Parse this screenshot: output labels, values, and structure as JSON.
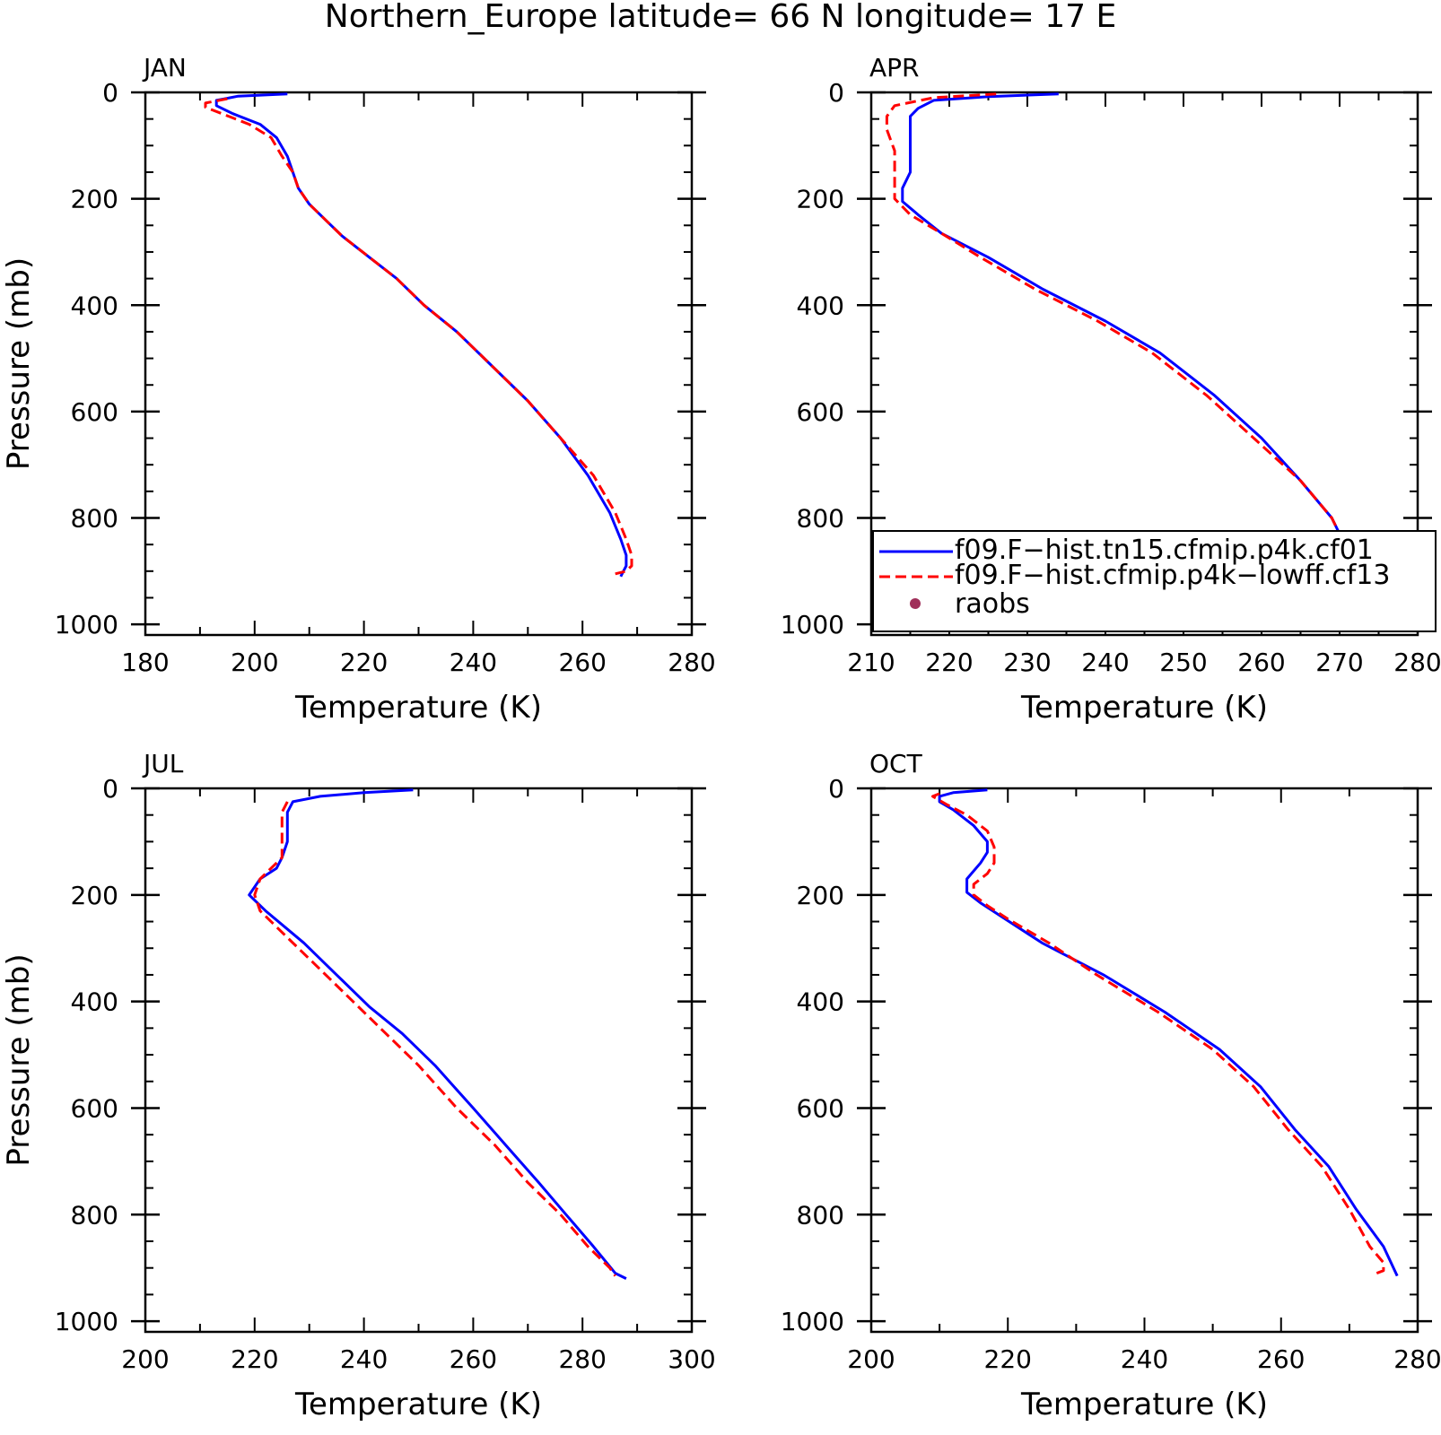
{
  "title": "Northern_Europe  latitude= 66 N longitude= 17 E",
  "colors": {
    "series1": "#0000ff",
    "series2": "#ff0000",
    "raobs": "#a0305a"
  },
  "legend": {
    "entries": [
      "f09.F−hist.tn15.cfmip.p4k.cf01",
      "f09.F−hist.cfmip.p4k−lowff.cf13",
      "raobs"
    ]
  },
  "chart_data": [
    {
      "type": "line",
      "panel_label": "JAN",
      "xlabel": "Temperature (K)",
      "ylabel": "Pressure (mb)",
      "xlim": [
        180,
        280
      ],
      "ylim": [
        1020,
        0
      ],
      "y_inverted": true,
      "xticks": [
        "180",
        "200",
        "220",
        "240",
        "260",
        "280"
      ],
      "yticks": [
        "0",
        "200",
        "400",
        "600",
        "800",
        "1000"
      ],
      "series": [
        {
          "name": "f09.F−hist.tn15.cfmip.p4k.cf01",
          "style": "solid",
          "points": [
            [
              206,
              3
            ],
            [
              197,
              7
            ],
            [
              193,
              15
            ],
            [
              193,
              25
            ],
            [
              196,
              40
            ],
            [
              201,
              60
            ],
            [
              204,
              85
            ],
            [
              206,
              120
            ],
            [
              207,
              150
            ],
            [
              208,
              180
            ],
            [
              210,
              210
            ],
            [
              213,
              240
            ],
            [
              216,
              270
            ],
            [
              221,
              310
            ],
            [
              226,
              350
            ],
            [
              231,
              400
            ],
            [
              237,
              450
            ],
            [
              243,
              510
            ],
            [
              250,
              580
            ],
            [
              256,
              650
            ],
            [
              261,
              720
            ],
            [
              265,
              790
            ],
            [
              267,
              840
            ],
            [
              268,
              870
            ],
            [
              268,
              890
            ],
            [
              267,
              910
            ]
          ]
        },
        {
          "name": "f09.F−hist.cfmip.p4k−lowff.cf13",
          "style": "dashed",
          "points": [
            [
              195,
              12
            ],
            [
              191,
              20
            ],
            [
              191,
              28
            ],
            [
              194,
              40
            ],
            [
              199,
              60
            ],
            [
              203,
              85
            ],
            [
              205,
              120
            ],
            [
              207,
              150
            ],
            [
              208,
              180
            ],
            [
              210,
              210
            ],
            [
              213,
              240
            ],
            [
              216,
              270
            ],
            [
              221,
              310
            ],
            [
              226,
              350
            ],
            [
              231,
              400
            ],
            [
              237,
              450
            ],
            [
              243,
              510
            ],
            [
              250,
              580
            ],
            [
              256,
              650
            ],
            [
              262,
              720
            ],
            [
              266,
              790
            ],
            [
              268,
              840
            ],
            [
              269,
              870
            ],
            [
              269,
              890
            ],
            [
              268,
              900
            ],
            [
              266,
              905
            ]
          ]
        }
      ]
    },
    {
      "type": "line",
      "panel_label": "APR",
      "xlabel": "Temperature (K)",
      "ylabel": "",
      "xlim": [
        210,
        280
      ],
      "ylim": [
        1020,
        0
      ],
      "y_inverted": true,
      "xticks": [
        "210",
        "220",
        "230",
        "240",
        "250",
        "260",
        "270",
        "280"
      ],
      "yticks": [
        "0",
        "200",
        "400",
        "600",
        "800",
        "1000"
      ],
      "series": [
        {
          "name": "f09.F−hist.tn15.cfmip.p4k.cf01",
          "style": "solid",
          "points": [
            [
              234,
              3
            ],
            [
              225,
              8
            ],
            [
              218,
              15
            ],
            [
              216,
              30
            ],
            [
              215,
              45
            ],
            [
              215,
              70
            ],
            [
              215,
              110
            ],
            [
              215,
              150
            ],
            [
              214,
              180
            ],
            [
              214,
              205
            ],
            [
              216,
              230
            ],
            [
              219,
              265
            ],
            [
              225,
              310
            ],
            [
              232,
              370
            ],
            [
              240,
              430
            ],
            [
              247,
              490
            ],
            [
              254,
              570
            ],
            [
              260,
              650
            ],
            [
              265,
              730
            ],
            [
              269,
              800
            ],
            [
              271,
              860
            ],
            [
              273,
              920
            ]
          ]
        },
        {
          "name": "f09.F−hist.cfmip.p4k−lowff.cf13",
          "style": "dashed",
          "points": [
            [
              226,
              3
            ],
            [
              218,
              10
            ],
            [
              213,
              25
            ],
            [
              212,
              45
            ],
            [
              212,
              70
            ],
            [
              213,
              110
            ],
            [
              213,
              150
            ],
            [
              213,
              180
            ],
            [
              213,
              200
            ],
            [
              215,
              230
            ],
            [
              219,
              265
            ],
            [
              224,
              310
            ],
            [
              231,
              370
            ],
            [
              239,
              430
            ],
            [
              246,
              490
            ],
            [
              253,
              570
            ],
            [
              259,
              650
            ],
            [
              265,
              730
            ],
            [
              269,
              800
            ],
            [
              271,
              860
            ],
            [
              272,
              880
            ]
          ]
        }
      ]
    },
    {
      "type": "line",
      "panel_label": "JUL",
      "xlabel": "Temperature (K)",
      "ylabel": "Pressure (mb)",
      "xlim": [
        200,
        300
      ],
      "ylim": [
        1020,
        0
      ],
      "y_inverted": true,
      "xticks": [
        "200",
        "220",
        "240",
        "260",
        "280",
        "300"
      ],
      "yticks": [
        "0",
        "200",
        "400",
        "600",
        "800",
        "1000"
      ],
      "series": [
        {
          "name": "f09.F−hist.tn15.cfmip.p4k.cf01",
          "style": "solid",
          "points": [
            [
              249,
              3
            ],
            [
              240,
              8
            ],
            [
              232,
              15
            ],
            [
              227,
              25
            ],
            [
              226,
              45
            ],
            [
              226,
              70
            ],
            [
              226,
              100
            ],
            [
              225,
              130
            ],
            [
              224,
              150
            ],
            [
              221,
              170
            ],
            [
              219,
              200
            ],
            [
              222,
              230
            ],
            [
              229,
              290
            ],
            [
              235,
              350
            ],
            [
              241,
              410
            ],
            [
              247,
              460
            ],
            [
              253,
              520
            ],
            [
              260,
              600
            ],
            [
              266,
              670
            ],
            [
              272,
              740
            ],
            [
              277,
              800
            ],
            [
              282,
              860
            ],
            [
              286,
              910
            ],
            [
              288,
              920
            ]
          ]
        },
        {
          "name": "f09.F−hist.cfmip.p4k−lowff.cf13",
          "style": "dashed",
          "points": [
            [
              226,
              25
            ],
            [
              225,
              45
            ],
            [
              225,
              70
            ],
            [
              225,
              100
            ],
            [
              225,
              130
            ],
            [
              223,
              150
            ],
            [
              221,
              170
            ],
            [
              220,
              200
            ],
            [
              221,
              230
            ],
            [
              227,
              290
            ],
            [
              233,
              350
            ],
            [
              239,
              410
            ],
            [
              244,
              460
            ],
            [
              250,
              520
            ],
            [
              257,
              600
            ],
            [
              264,
              670
            ],
            [
              270,
              740
            ],
            [
              276,
              800
            ],
            [
              281,
              860
            ],
            [
              285,
              900
            ],
            [
              286,
              915
            ]
          ]
        }
      ]
    },
    {
      "type": "line",
      "panel_label": "OCT",
      "xlabel": "Temperature (K)",
      "ylabel": "",
      "xlim": [
        200,
        280
      ],
      "ylim": [
        1020,
        0
      ],
      "y_inverted": true,
      "xticks": [
        "200",
        "220",
        "240",
        "260",
        "280"
      ],
      "yticks": [
        "0",
        "200",
        "400",
        "600",
        "800",
        "1000"
      ],
      "series": [
        {
          "name": "f09.F−hist.tn15.cfmip.p4k.cf01",
          "style": "solid",
          "points": [
            [
              217,
              3
            ],
            [
              212,
              8
            ],
            [
              210,
              15
            ],
            [
              210,
              25
            ],
            [
              212,
              40
            ],
            [
              215,
              70
            ],
            [
              217,
              100
            ],
            [
              217,
              120
            ],
            [
              216,
              140
            ],
            [
              214,
              170
            ],
            [
              214,
              195
            ],
            [
              216,
              215
            ],
            [
              219,
              240
            ],
            [
              225,
              290
            ],
            [
              234,
              350
            ],
            [
              243,
              420
            ],
            [
              251,
              490
            ],
            [
              257,
              560
            ],
            [
              262,
              640
            ],
            [
              267,
              710
            ],
            [
              271,
              790
            ],
            [
              275,
              860
            ],
            [
              277,
              915
            ]
          ]
        },
        {
          "name": "f09.F−hist.cfmip.p4k−lowff.cf13",
          "style": "dashed",
          "points": [
            [
              210,
              10
            ],
            [
              209,
              15
            ],
            [
              211,
              30
            ],
            [
              214,
              50
            ],
            [
              217,
              80
            ],
            [
              218,
              110
            ],
            [
              218,
              140
            ],
            [
              217,
              160
            ],
            [
              215,
              180
            ],
            [
              215,
              200
            ],
            [
              217,
              220
            ],
            [
              220,
              245
            ],
            [
              226,
              290
            ],
            [
              233,
              350
            ],
            [
              242,
              420
            ],
            [
              250,
              490
            ],
            [
              256,
              560
            ],
            [
              261,
              640
            ],
            [
              266,
              710
            ],
            [
              270,
              790
            ],
            [
              273,
              860
            ],
            [
              275,
              890
            ],
            [
              275,
              905
            ],
            [
              274,
              910
            ]
          ]
        }
      ]
    }
  ]
}
